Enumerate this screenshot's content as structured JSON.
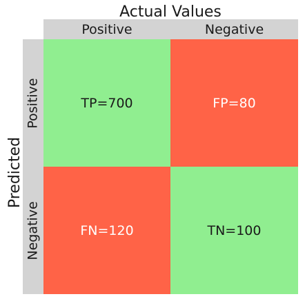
{
  "titles": {
    "actual": "Actual Values",
    "predicted": "Predicted"
  },
  "columns": [
    "Positive",
    "Negative"
  ],
  "rows": [
    "Positive",
    "Negative"
  ],
  "colors": {
    "correct": "#90ee90",
    "incorrect": "#ff6347",
    "header_bg": "#d3d3d3",
    "text_dark": "#1a1a1a",
    "text_light": "#ffffff"
  },
  "cells": [
    {
      "label": "TP=700",
      "kind": "correct"
    },
    {
      "label": "FP=80",
      "kind": "incorrect"
    },
    {
      "label": "FN=120",
      "kind": "incorrect"
    },
    {
      "label": "TN=100",
      "kind": "correct"
    }
  ]
}
